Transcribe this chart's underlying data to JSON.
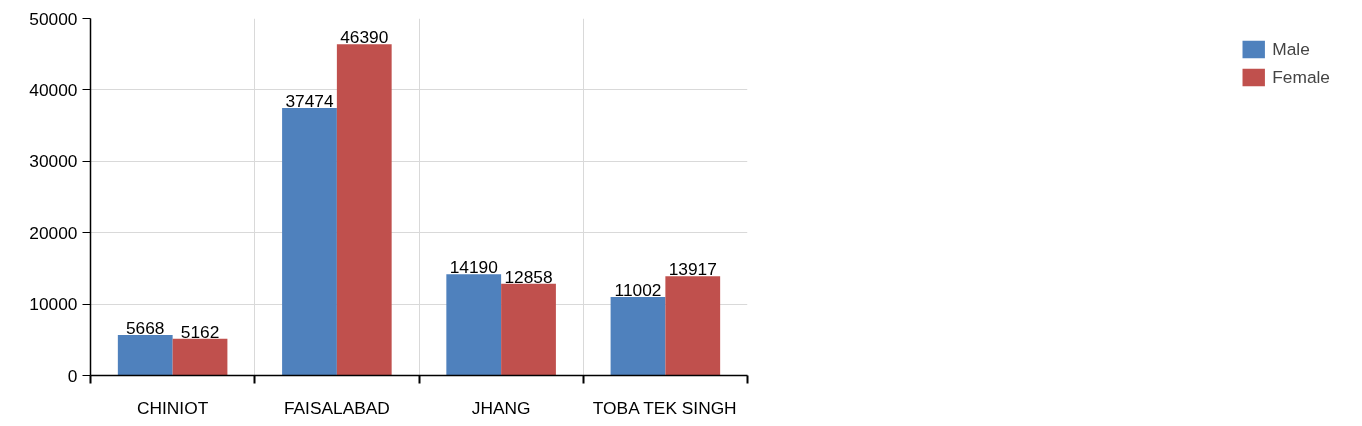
{
  "chart_data": {
    "type": "bar",
    "categories": [
      "CHINIOT",
      "FAISALABAD",
      "JHANG",
      "TOBA TEK SINGH"
    ],
    "series": [
      {
        "name": "Male",
        "color": "#4f81bd",
        "values": [
          5668,
          37474,
          14190,
          11002
        ]
      },
      {
        "name": "Female",
        "color": "#c0504d",
        "values": [
          5162,
          46390,
          12858,
          13917
        ]
      }
    ],
    "ylim": [
      0,
      50000
    ],
    "yticks": [
      0,
      10000,
      20000,
      30000,
      40000,
      50000
    ],
    "grid": true,
    "legend": "right",
    "data_labels": true
  }
}
